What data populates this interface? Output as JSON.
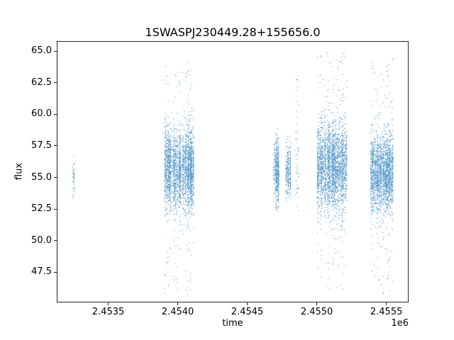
{
  "chart_data": {
    "type": "scatter",
    "title": "1SWASPJ230449.28+155656.0",
    "xlabel": "time",
    "ylabel": "flux",
    "x_offset_label": "1e6",
    "grid": false,
    "legend": null,
    "marker_color": "#4f94c8",
    "xlim": [
      2453130,
      2455660
    ],
    "ylim": [
      45.1,
      65.8
    ],
    "x_ticks": [
      2453500,
      2454000,
      2454500,
      2455000,
      2455500
    ],
    "x_tick_labels": [
      "2.4535",
      "2.4540",
      "2.4545",
      "2.4550",
      "2.4555"
    ],
    "y_ticks": [
      47.5,
      50.0,
      52.5,
      55.0,
      57.5,
      60.0,
      62.5,
      65.0
    ],
    "y_tick_labels": [
      "47.5",
      "50.0",
      "52.5",
      "55.0",
      "57.5",
      "60.0",
      "62.5",
      "65.0"
    ],
    "clusters": [
      {
        "t_start": 2453240,
        "t_end": 2453254,
        "flux_center": 55.1,
        "flux_sigma": 0.85,
        "flux_min": 53.4,
        "flux_max": 56.7,
        "n": 50,
        "tail_frac": 0.25
      },
      {
        "t_start": 2453898,
        "t_end": 2454112,
        "flux_center": 55.7,
        "flux_sigma": 1.55,
        "flux_min": 45.6,
        "flux_max": 64.3,
        "n": 2800,
        "tail_frac": 0.1
      },
      {
        "t_start": 2454684,
        "t_end": 2454726,
        "flux_center": 55.6,
        "flux_sigma": 1.25,
        "flux_min": 52.3,
        "flux_max": 58.9,
        "n": 500,
        "tail_frac": 0.08
      },
      {
        "t_start": 2454775,
        "t_end": 2454808,
        "flux_center": 55.5,
        "flux_sigma": 1.1,
        "flux_min": 53.0,
        "flux_max": 58.3,
        "n": 300,
        "tail_frac": 0.08
      },
      {
        "t_start": 2454842,
        "t_end": 2454868,
        "flux_center": 56.5,
        "flux_sigma": 2.6,
        "flux_min": 52.4,
        "flux_max": 63.6,
        "n": 60,
        "tail_frac": 0.3
      },
      {
        "t_start": 2455000,
        "t_end": 2455212,
        "flux_center": 55.9,
        "flux_sigma": 1.65,
        "flux_min": 46.0,
        "flux_max": 65.0,
        "n": 2800,
        "tail_frac": 0.1
      },
      {
        "t_start": 2455385,
        "t_end": 2455545,
        "flux_center": 55.4,
        "flux_sigma": 1.5,
        "flux_min": 45.8,
        "flux_max": 64.6,
        "n": 2300,
        "tail_frac": 0.1
      }
    ]
  }
}
